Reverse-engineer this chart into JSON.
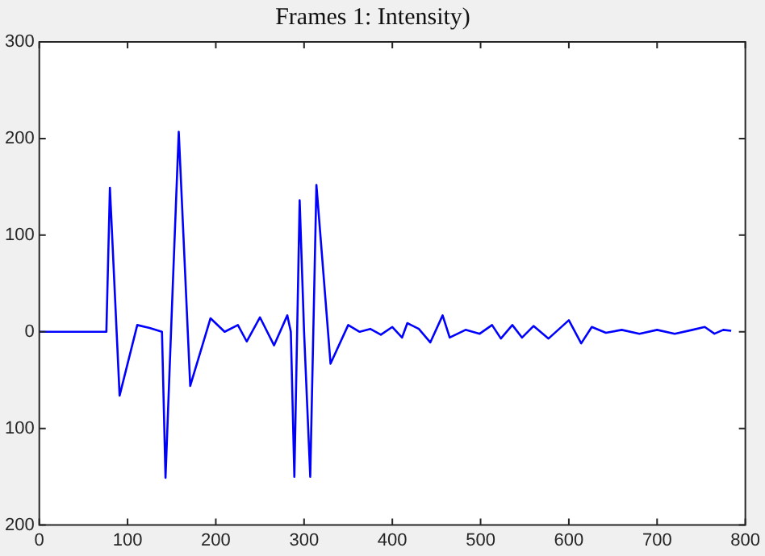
{
  "chart_data": {
    "type": "line",
    "title": "Frames 1: Intensity)",
    "xlim": [
      0,
      800
    ],
    "xticks": [
      0,
      100,
      200,
      300,
      400,
      500,
      600,
      700,
      800
    ],
    "ylim": [
      -200,
      300
    ],
    "yticks": [
      {
        "value": -200,
        "label": "200"
      },
      {
        "value": -100,
        "label": "100"
      },
      0,
      100,
      200,
      300
    ],
    "grid": false,
    "legend": false,
    "marker": "none",
    "line_style": "solid",
    "series": [
      {
        "color": "#0000ff",
        "x": [
          0,
          76,
          80,
          91,
          111,
          125,
          139,
          143,
          151,
          158,
          171,
          194,
          210,
          225,
          235,
          250,
          266,
          281,
          285,
          289,
          295,
          300,
          307,
          314,
          330,
          350,
          363,
          375,
          387,
          400,
          411,
          417,
          430,
          443,
          457,
          465,
          483,
          499,
          513,
          523,
          536,
          547,
          560,
          577,
          600,
          614,
          626,
          642,
          660,
          680,
          700,
          720,
          740,
          754,
          765,
          775,
          784
        ],
        "values": [
          0,
          0,
          149,
          -66,
          7,
          4,
          0,
          -151,
          42,
          207,
          -56,
          14,
          0,
          7,
          -10,
          15,
          -14,
          17,
          0,
          -150,
          136,
          0,
          -150,
          152,
          -33,
          7,
          0,
          3,
          -3,
          5,
          -6,
          9,
          3,
          -11,
          17,
          -6,
          2,
          -2,
          7,
          -7,
          7,
          -6,
          6,
          -7,
          12,
          -12,
          5,
          -1,
          2,
          -2,
          2,
          -2,
          2,
          5,
          -2,
          2,
          1
        ]
      }
    ]
  }
}
